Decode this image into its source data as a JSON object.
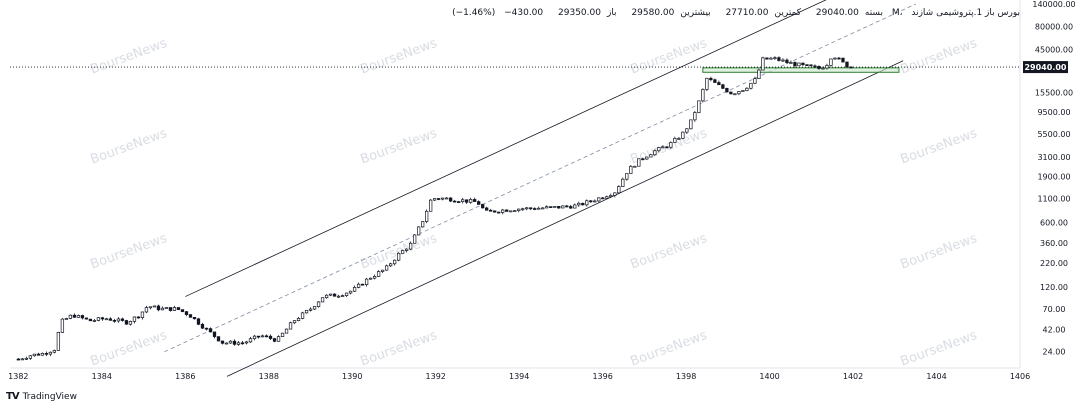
{
  "legend": {
    "symbol": "1.پتروشیمی شازند",
    "exchange": "M، بورس باز",
    "open_label": "باز",
    "open": "29350.00",
    "high_label": "بیشترین",
    "high": "29580.00",
    "low_label": "کمترین",
    "low": "27710.00",
    "close_label": "بسته",
    "close": "29040.00",
    "change": "−430.00",
    "change_pct": "(−1.46%)"
  },
  "brand": {
    "name": "TradingView",
    "icon": "tradingview-logo-icon"
  },
  "watermark": "BourseNews",
  "chart_data": {
    "type": "candlestick",
    "y_scale": "log",
    "ylim": [
      16,
      140000
    ],
    "xlim": [
      1381.8,
      1406
    ],
    "x_ticks": [
      "1382",
      "1384",
      "1386",
      "1388",
      "1390",
      "1392",
      "1394",
      "1396",
      "1398",
      "1400",
      "1402",
      "1404",
      "1406"
    ],
    "y_ticks": [
      "140000.00",
      "80000.00",
      "45000.00",
      "15500.00",
      "9500.00",
      "5500.00",
      "3100.00",
      "1900.00",
      "1100.00",
      "600.00",
      "360.00",
      "220.00",
      "120.00",
      "70.00",
      "42.00",
      "24.00"
    ],
    "last_price": "29040.00",
    "last_price_value": 29040,
    "price_path": [
      [
        1382.0,
        20
      ],
      [
        1382.3,
        22
      ],
      [
        1382.6,
        23
      ],
      [
        1382.9,
        26
      ],
      [
        1383.0,
        50
      ],
      [
        1383.3,
        60
      ],
      [
        1383.7,
        52
      ],
      [
        1384.1,
        55
      ],
      [
        1384.6,
        50
      ],
      [
        1384.9,
        60
      ],
      [
        1385.1,
        75
      ],
      [
        1385.4,
        70
      ],
      [
        1385.8,
        70
      ],
      [
        1386.1,
        60
      ],
      [
        1386.5,
        42
      ],
      [
        1386.9,
        30
      ],
      [
        1387.4,
        30
      ],
      [
        1387.8,
        36
      ],
      [
        1388.2,
        32
      ],
      [
        1388.6,
        52
      ],
      [
        1389.0,
        70
      ],
      [
        1389.3,
        95
      ],
      [
        1389.7,
        100
      ],
      [
        1390.0,
        110
      ],
      [
        1390.4,
        150
      ],
      [
        1390.8,
        190
      ],
      [
        1391.1,
        270
      ],
      [
        1391.4,
        350
      ],
      [
        1391.7,
        650
      ],
      [
        1391.9,
        1100
      ],
      [
        1392.2,
        1100
      ],
      [
        1392.6,
        1050
      ],
      [
        1393.0,
        1000
      ],
      [
        1393.2,
        780
      ],
      [
        1393.6,
        820
      ],
      [
        1394.0,
        850
      ],
      [
        1394.4,
        860
      ],
      [
        1394.9,
        880
      ],
      [
        1395.4,
        920
      ],
      [
        1395.9,
        1100
      ],
      [
        1396.3,
        1300
      ],
      [
        1396.6,
        2200
      ],
      [
        1396.9,
        2900
      ],
      [
        1397.2,
        3500
      ],
      [
        1397.6,
        4200
      ],
      [
        1397.9,
        5400
      ],
      [
        1398.1,
        7200
      ],
      [
        1398.3,
        12000
      ],
      [
        1398.5,
        22000
      ],
      [
        1398.8,
        18000
      ],
      [
        1399.1,
        15000
      ],
      [
        1399.4,
        17000
      ],
      [
        1399.7,
        22000
      ],
      [
        1399.8,
        35000
      ],
      [
        1400.1,
        36000
      ],
      [
        1400.5,
        32000
      ],
      [
        1400.8,
        30000
      ],
      [
        1401.2,
        28000
      ],
      [
        1401.4,
        32000
      ],
      [
        1401.5,
        40000
      ],
      [
        1401.8,
        31000
      ],
      [
        1401.95,
        29040
      ]
    ],
    "channel_upper": [
      [
        1386.0,
        95
      ],
      [
        1402.5,
        270000
      ]
    ],
    "channel_middle": [
      [
        1385.5,
        24
      ],
      [
        1403.5,
        140000
      ]
    ],
    "channel_lower": [
      [
        1387.0,
        13
      ],
      [
        1403.2,
        34000
      ]
    ],
    "support_zone": {
      "x_from": 1398.4,
      "x_to": 1403.1,
      "price_low": 25500,
      "price_high": 28500
    },
    "grid": false,
    "colors": {
      "candle": "#131722",
      "channel": "#131722",
      "middle_line": "#7f8ba6",
      "zone": "#2e7d32",
      "zone_fill": "#c8e6c9"
    }
  }
}
